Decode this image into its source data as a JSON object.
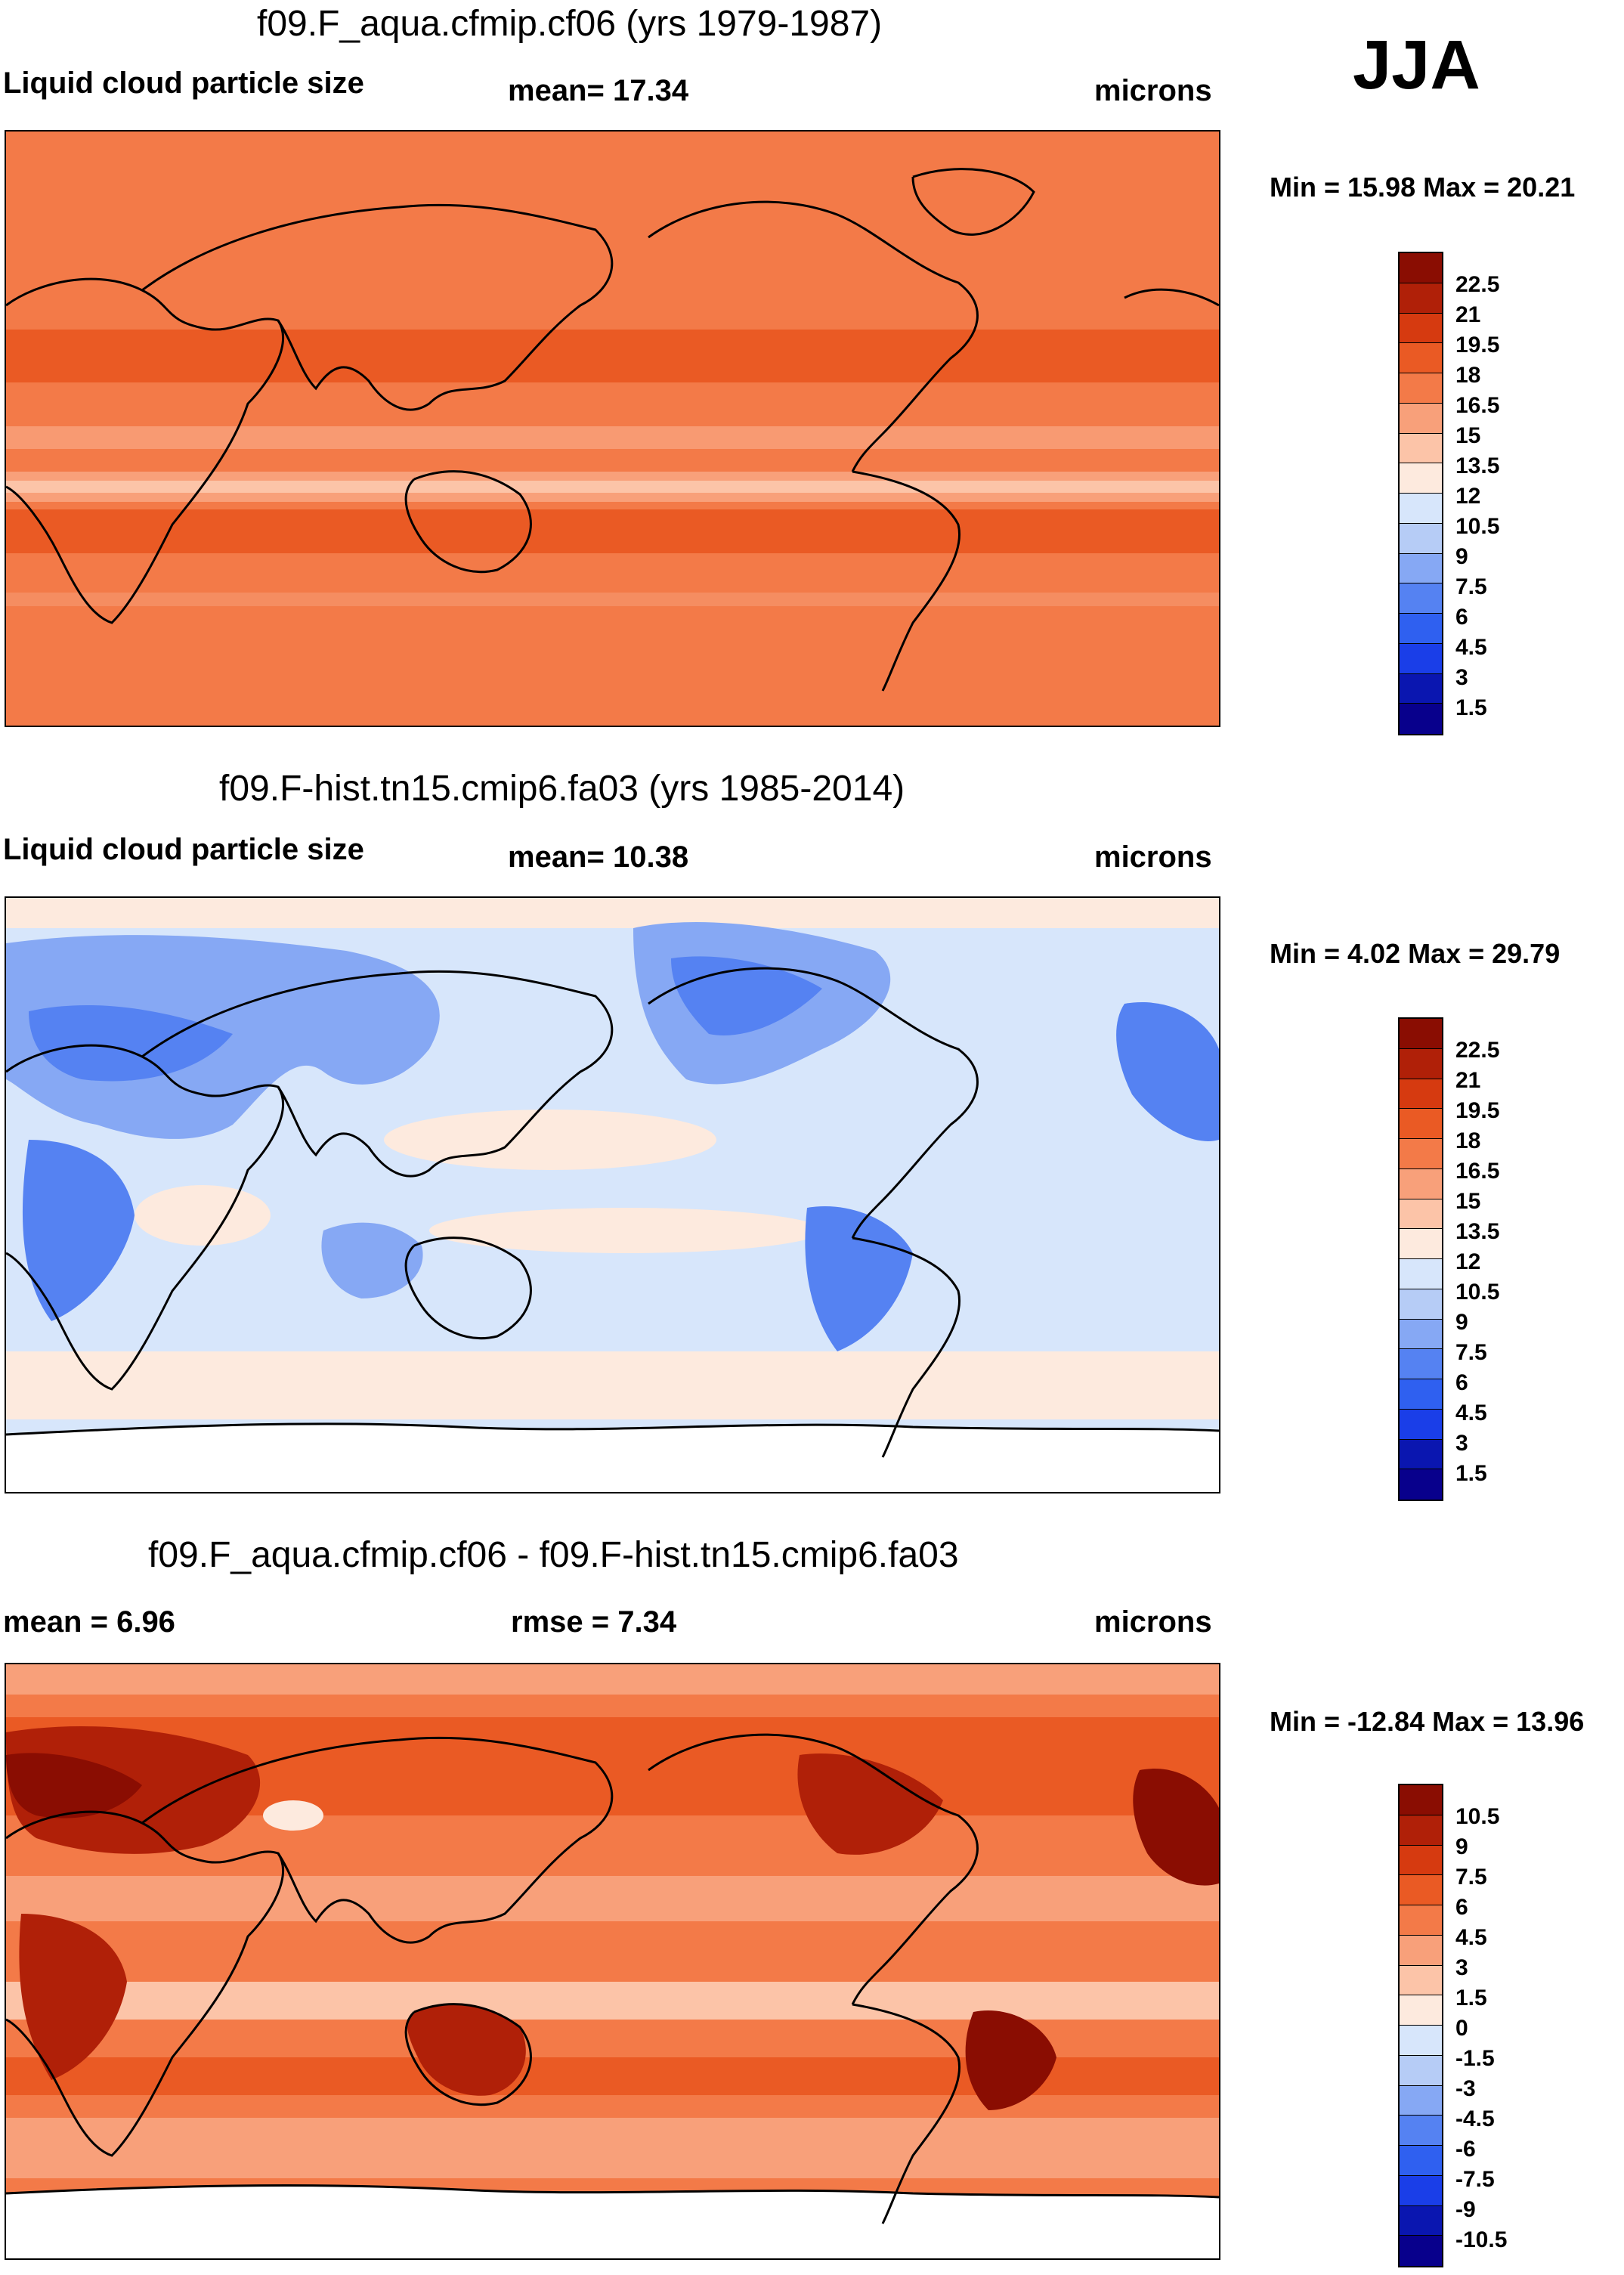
{
  "season": "JJA",
  "colors": {
    "white": "#ffffff",
    "c_blue_dark": "#08008c",
    "c_blue_1": "#0a16b0",
    "c_blue_2": "#0d26d0",
    "c_blue_3": "#1a3ee8",
    "c_blue_4": "#2f60f0",
    "c_blue_5": "#5582f2",
    "c_blue_6": "#86a8f4",
    "c_blue_7": "#b6ccf6",
    "c_blue_8": "#d7e6fb",
    "c_cream": "#fdeade",
    "c_peach": "#fcc4a8",
    "c_salmon": "#f8a07a",
    "c_orange": "#f37a48",
    "c_red_orange": "#ea5a24",
    "c_red": "#d63a10",
    "c_red_dark": "#b02008",
    "c_maroon": "#8a0d02"
  },
  "panels": [
    {
      "title": "f09.F_aqua.cfmip.cf06 (yrs 1979-1987)",
      "left_label": "Liquid cloud particle size",
      "center_label": "mean=  17.34",
      "right_label": "microns",
      "minmax": "Min =  15.98 Max =  20.21",
      "colorbar_ticks": [
        "22.5",
        "21",
        "19.5",
        "18",
        "16.5",
        "15",
        "13.5",
        "12",
        "10.5",
        "9",
        "7.5",
        "6",
        "4.5",
        "3",
        "1.5"
      ]
    },
    {
      "title": "f09.F-hist.tn15.cmip6.fa03 (yrs 1985-2014)",
      "left_label": "Liquid cloud particle size",
      "center_label": "mean=  10.38",
      "right_label": "microns",
      "minmax": "Min =   4.02 Max =  29.79",
      "colorbar_ticks": [
        "22.5",
        "21",
        "19.5",
        "18",
        "16.5",
        "15",
        "13.5",
        "12",
        "10.5",
        "9",
        "7.5",
        "6",
        "4.5",
        "3",
        "1.5"
      ]
    },
    {
      "title": "f09.F_aqua.cfmip.cf06 - f09.F-hist.tn15.cmip6.fa03",
      "left_label": "mean =   6.96",
      "center_label": "rmse =   7.34",
      "right_label": "microns",
      "minmax": "Min = -12.84 Max =  13.96",
      "colorbar_ticks": [
        "10.5",
        "9",
        "7.5",
        "6",
        "4.5",
        "3",
        "1.5",
        "0",
        "-1.5",
        "-3",
        "-4.5",
        "-6",
        "-7.5",
        "-9",
        "-10.5"
      ]
    }
  ]
}
